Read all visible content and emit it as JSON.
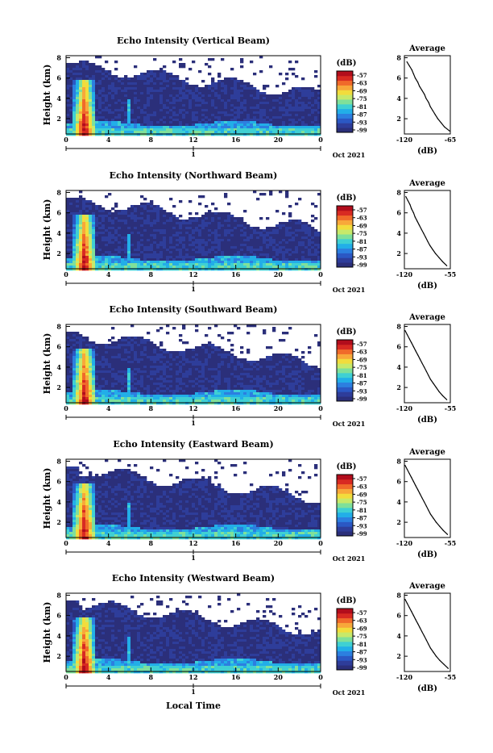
{
  "xlabel": "Local Time",
  "date_label": "Oct 2021",
  "day_label": "1",
  "colorbar": {
    "unit": "(dB)",
    "ticks": [
      "-57",
      "-63",
      "-69",
      "-75",
      "-81",
      "-87",
      "-93",
      "-99"
    ],
    "colors": [
      "#2b2f7a",
      "#2e3d9a",
      "#2b58c4",
      "#2c7fe0",
      "#22aee8",
      "#3fd0d3",
      "#7fe09a",
      "#c7e96a",
      "#f2dc3c",
      "#f8a83a",
      "#f06a2a",
      "#d82a22",
      "#b20d1c"
    ]
  },
  "chart_data": [
    {
      "type": "heatmap",
      "title": "Echo Intensity (Vertical Beam)",
      "ylabel": "Height (km)",
      "x_ticks": [
        "0",
        "4",
        "8",
        "12",
        "16",
        "20",
        "0"
      ],
      "y_ticks": [
        "2",
        "4",
        "6",
        "8"
      ],
      "xlim": [
        0,
        24
      ],
      "ylim": [
        0.5,
        8.2
      ],
      "zlim": [
        -99,
        -57
      ],
      "profile": {
        "title": "Average",
        "xlabel": "(dB)",
        "x_ticks": [
          "-120",
          "-65"
        ],
        "xlim": [
          -120,
          -65
        ],
        "y_ticks": [
          "2",
          "4",
          "6",
          "8"
        ],
        "ylim": [
          0.5,
          8.2
        ],
        "heights": [
          0.8,
          1.2,
          1.6,
          2.0,
          2.4,
          2.8,
          3.2,
          3.6,
          4.0,
          4.4,
          4.8,
          5.2,
          5.6,
          6.0,
          6.4,
          6.8,
          7.2,
          7.6
        ],
        "values": [
          -66,
          -72,
          -76,
          -80,
          -83,
          -86,
          -89,
          -91,
          -94,
          -96,
          -99,
          -102,
          -104,
          -107,
          -109,
          -111,
          -114,
          -117
        ]
      }
    },
    {
      "type": "heatmap",
      "title": "Echo Intensity (Northward Beam)",
      "ylabel": "Height (km)",
      "x_ticks": [
        "0",
        "4",
        "8",
        "12",
        "16",
        "20",
        "0"
      ],
      "y_ticks": [
        "2",
        "4",
        "6",
        "8"
      ],
      "xlim": [
        0,
        24
      ],
      "ylim": [
        0.5,
        8.2
      ],
      "zlim": [
        -99,
        -57
      ],
      "profile": {
        "title": "Average",
        "xlabel": "(dB)",
        "x_ticks": [
          "-120",
          "-55"
        ],
        "xlim": [
          -120,
          -55
        ],
        "y_ticks": [
          "2",
          "4",
          "6",
          "8"
        ],
        "ylim": [
          0.5,
          8.2
        ],
        "heights": [
          0.8,
          1.2,
          1.6,
          2.0,
          2.4,
          2.8,
          3.2,
          3.6,
          4.0,
          4.4,
          4.8,
          5.2,
          5.6,
          6.0,
          6.4,
          6.8,
          7.2,
          7.6
        ],
        "values": [
          -60,
          -66,
          -71,
          -76,
          -80,
          -84,
          -87,
          -90,
          -93,
          -96,
          -99,
          -102,
          -105,
          -107,
          -110,
          -112,
          -115,
          -118
        ]
      }
    },
    {
      "type": "heatmap",
      "title": "Echo Intensity (Southward Beam)",
      "ylabel": "Height (km)",
      "x_ticks": [
        "0",
        "4",
        "8",
        "12",
        "16",
        "20",
        "0"
      ],
      "y_ticks": [
        "2",
        "4",
        "6",
        "8"
      ],
      "xlim": [
        0,
        24
      ],
      "ylim": [
        0.5,
        8.2
      ],
      "zlim": [
        -99,
        -57
      ],
      "profile": {
        "title": "Average",
        "xlabel": "(dB)",
        "x_ticks": [
          "-120",
          "-55"
        ],
        "xlim": [
          -120,
          -55
        ],
        "y_ticks": [
          "2",
          "4",
          "6",
          "8"
        ],
        "ylim": [
          0.5,
          8.2
        ],
        "heights": [
          0.8,
          1.2,
          1.6,
          2.0,
          2.4,
          2.8,
          3.2,
          3.6,
          4.0,
          4.4,
          4.8,
          5.2,
          5.6,
          6.0,
          6.4,
          6.8,
          7.2,
          7.6
        ],
        "values": [
          -60,
          -66,
          -71,
          -75,
          -79,
          -83,
          -86,
          -89,
          -92,
          -95,
          -98,
          -101,
          -104,
          -107,
          -110,
          -113,
          -116,
          -119
        ]
      }
    },
    {
      "type": "heatmap",
      "title": "Echo Intensity (Eastward Beam)",
      "ylabel": "Height (km)",
      "x_ticks": [
        "0",
        "4",
        "8",
        "12",
        "16",
        "20",
        "0"
      ],
      "y_ticks": [
        "2",
        "4",
        "6",
        "8"
      ],
      "xlim": [
        0,
        24
      ],
      "ylim": [
        0.5,
        8.2
      ],
      "zlim": [
        -99,
        -57
      ],
      "profile": {
        "title": "Average",
        "xlabel": "(dB)",
        "x_ticks": [
          "-120",
          "-55"
        ],
        "xlim": [
          -120,
          -55
        ],
        "y_ticks": [
          "2",
          "4",
          "6",
          "8"
        ],
        "ylim": [
          0.5,
          8.2
        ],
        "heights": [
          0.8,
          1.2,
          1.6,
          2.0,
          2.4,
          2.8,
          3.2,
          3.6,
          4.0,
          4.4,
          4.8,
          5.2,
          5.6,
          6.0,
          6.4,
          6.8,
          7.2,
          7.6
        ],
        "values": [
          -59,
          -65,
          -70,
          -75,
          -79,
          -83,
          -86,
          -89,
          -92,
          -95,
          -98,
          -101,
          -104,
          -107,
          -110,
          -113,
          -116,
          -119
        ]
      }
    },
    {
      "type": "heatmap",
      "title": "Echo Intensity (Westward Beam)",
      "ylabel": "Height (km)",
      "x_ticks": [
        "0",
        "4",
        "8",
        "12",
        "16",
        "20",
        "0"
      ],
      "y_ticks": [
        "2",
        "4",
        "6",
        "8"
      ],
      "xlim": [
        0,
        24
      ],
      "ylim": [
        0.5,
        8.2
      ],
      "zlim": [
        -99,
        -57
      ],
      "profile": {
        "title": "Average",
        "xlabel": "(dB)",
        "x_ticks": [
          "-120",
          "-55"
        ],
        "xlim": [
          -120,
          -55
        ],
        "y_ticks": [
          "2",
          "4",
          "6",
          "8"
        ],
        "ylim": [
          0.5,
          8.2
        ],
        "heights": [
          0.8,
          1.2,
          1.6,
          2.0,
          2.4,
          2.8,
          3.2,
          3.6,
          4.0,
          4.4,
          4.8,
          5.2,
          5.6,
          6.0,
          6.4,
          6.8,
          7.2,
          7.6
        ],
        "values": [
          -58,
          -64,
          -70,
          -75,
          -79,
          -83,
          -86,
          -89,
          -92,
          -95,
          -98,
          -101,
          -104,
          -107,
          -110,
          -113,
          -116,
          -119
        ]
      }
    }
  ]
}
